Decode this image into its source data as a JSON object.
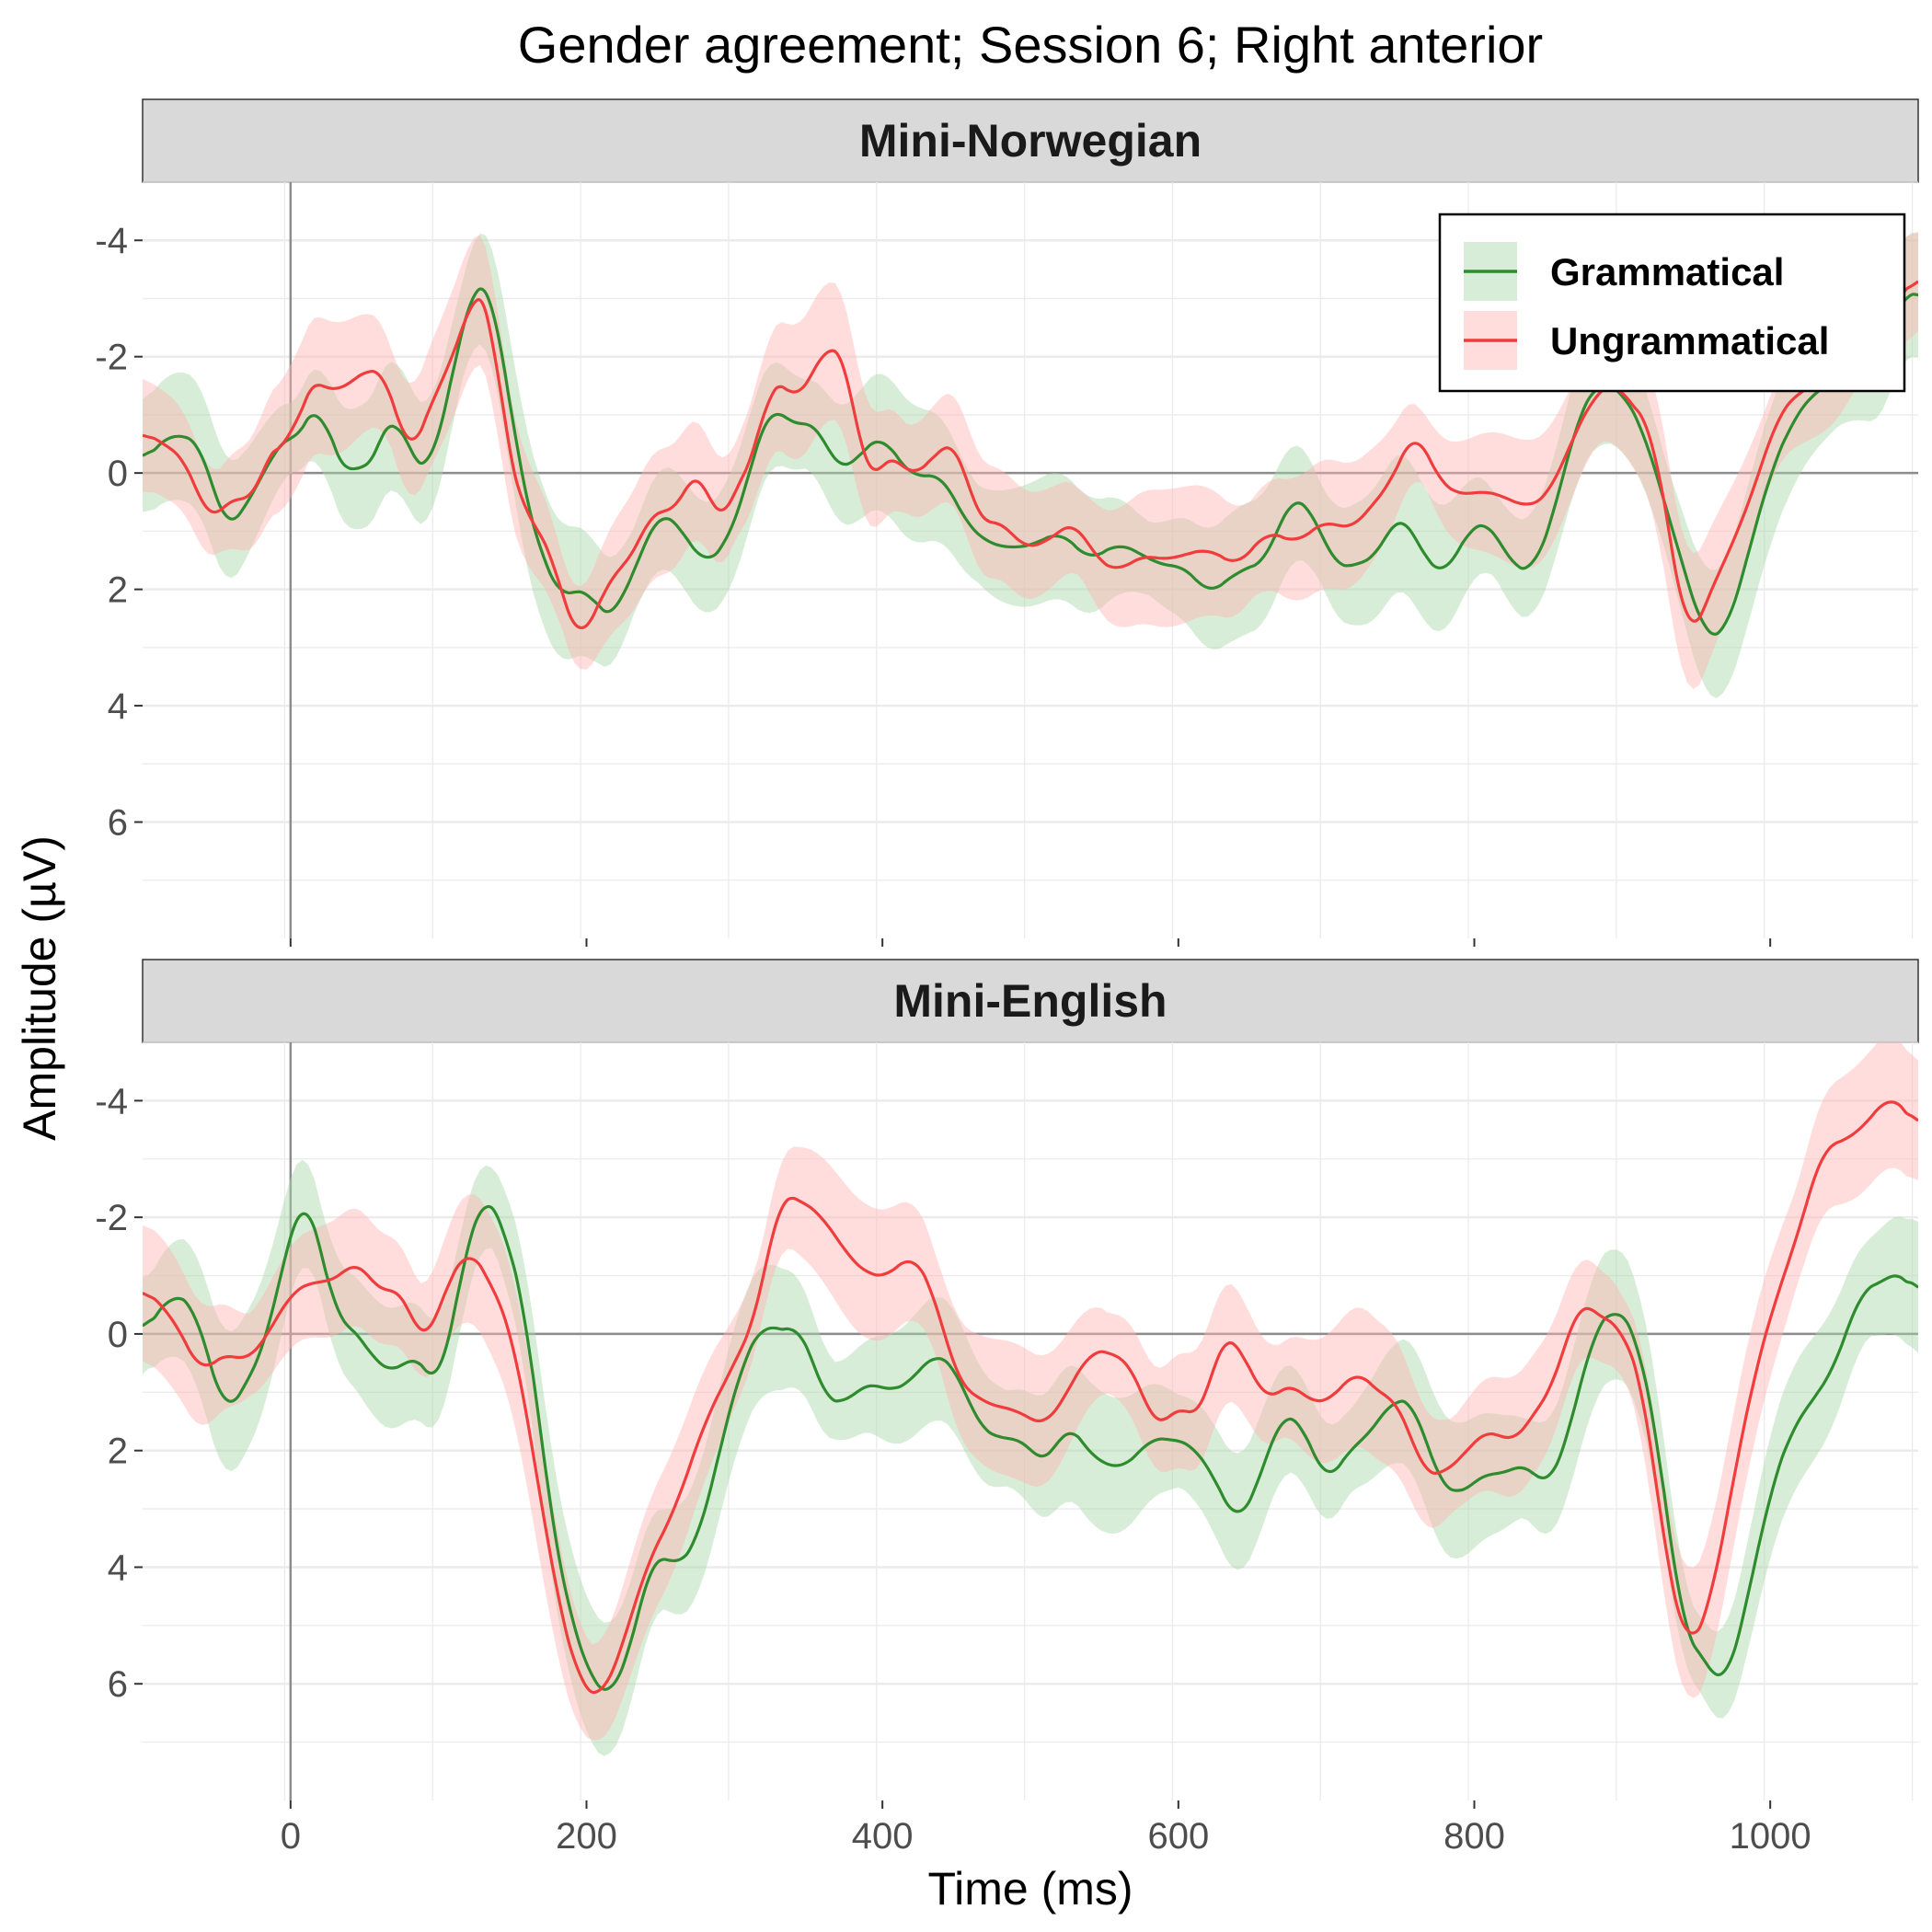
{
  "chart_data": {
    "type": "line",
    "title": "Gender agreement; Session 6; Right anterior",
    "xlabel": "Time (ms)",
    "ylabel": "Amplitude (µV)",
    "xlim": [
      -100,
      1100
    ],
    "ylim": [
      -5,
      8
    ],
    "y_reversed": true,
    "x_ticks": [
      0,
      200,
      400,
      600,
      800,
      1000
    ],
    "y_ticks": [
      -4,
      -2,
      0,
      2,
      4,
      6
    ],
    "y_tick_labels": [
      "-4",
      "-2",
      "0",
      "2",
      "4",
      "6"
    ],
    "grid": true,
    "reference_lines": {
      "x": 0,
      "y": 0
    },
    "legend": {
      "position": "top-right",
      "panel": 0,
      "entries": [
        "Grammatical",
        "Ungrammatical"
      ]
    },
    "colors": {
      "Grammatical": "#2e8b2e",
      "Ungrammatical": "#f03c3c",
      "Grammatical_band": "#a8d8a8",
      "Ungrammatical_band": "#ffb3b3"
    },
    "panels": [
      {
        "strip": "Mini-Norwegian",
        "series": [
          {
            "name": "Grammatical",
            "x": [
              -100,
              -80,
              -60,
              -45,
              -30,
              -15,
              0,
              10,
              20,
              30,
              40,
              50,
              60,
              70,
              80,
              95,
              110,
              125,
              135,
              145,
              155,
              170,
              185,
              200,
              210,
              220,
              235,
              250,
              265,
              280,
              295,
              305,
              315,
              325,
              340,
              355,
              370,
              385,
              400,
              410,
              425,
              440,
              455,
              470,
              490,
              505,
              520,
              540,
              560,
              575,
              590,
              605,
              620,
              640,
              660,
              675,
              690,
              705,
              720,
              735,
              750,
              765,
              780,
              795,
              810,
              825,
              840,
              855,
              870,
              885,
              900,
              915,
              925,
              940,
              955,
              970,
              985,
              1000,
              1015,
              1030,
              1045,
              1060,
              1075,
              1090,
              1100
            ],
            "y": [
              -0.2,
              -0.7,
              -0.5,
              1.0,
              0.6,
              -0.2,
              -0.7,
              -0.6,
              -1.5,
              0.0,
              -0.2,
              0.1,
              -0.5,
              -1.2,
              -0.3,
              0.0,
              -1.8,
              -3.4,
              -3.2,
              -1.8,
              0.0,
              1.5,
              2.2,
              1.9,
              2.5,
              2.4,
              1.5,
              0.6,
              1.0,
              1.6,
              1.2,
              0.5,
              -0.5,
              -1.2,
              -0.8,
              -0.9,
              0.0,
              -0.3,
              -0.7,
              -0.2,
              0.1,
              0.0,
              0.8,
              1.2,
              1.3,
              1.2,
              1.0,
              1.5,
              1.2,
              1.4,
              1.6,
              1.6,
              2.1,
              1.7,
              1.5,
              0.4,
              0.6,
              1.6,
              1.6,
              1.4,
              0.6,
              1.4,
              1.8,
              1.0,
              0.8,
              1.6,
              1.7,
              0.6,
              -1.0,
              -1.6,
              -1.4,
              -0.7,
              0.2,
              1.5,
              2.8,
              2.8,
              1.4,
              0.0,
              -0.9,
              -1.4,
              -1.6,
              -1.9,
              -1.8,
              -3.3,
              -2.9
            ]
          },
          {
            "name": "Ungrammatical",
            "x": [
              -100,
              -85,
              -70,
              -55,
              -40,
              -25,
              -10,
              0,
              10,
              20,
              35,
              50,
              65,
              80,
              95,
              110,
              125,
              135,
              145,
              160,
              175,
              185,
              195,
              205,
              215,
              230,
              245,
              260,
              275,
              290,
              305,
              315,
              325,
              340,
              355,
              365,
              375,
              390,
              405,
              420,
              435,
              450,
              465,
              480,
              495,
              510,
              530,
              545,
              560,
              575,
              590,
              605,
              620,
              640,
              660,
              680,
              700,
              715,
              730,
              745,
              760,
              775,
              790,
              805,
              820,
              835,
              850,
              865,
              880,
              895,
              905,
              920,
              930,
              945,
              960,
              975,
              990,
              1005,
              1020,
              1035,
              1050,
              1065,
              1080,
              1095,
              1100
            ],
            "y": [
              -0.7,
              -0.5,
              -0.2,
              0.9,
              0.4,
              0.5,
              -0.7,
              -0.3,
              -1.6,
              -1.5,
              -1.4,
              -1.8,
              -1.7,
              -0.2,
              -1.2,
              -2.0,
              -3.2,
              -3.0,
              -0.5,
              0.8,
              1.2,
              2.3,
              2.9,
              2.5,
              1.8,
              1.5,
              0.6,
              0.7,
              -0.2,
              1.0,
              0.0,
              -0.3,
              -1.8,
              -1.2,
              -1.8,
              -2.3,
              -2.0,
              0.3,
              -0.4,
              0.1,
              -0.3,
              -0.6,
              0.9,
              0.8,
              1.3,
              1.2,
              0.8,
              1.5,
              1.7,
              1.4,
              1.5,
              1.4,
              1.3,
              1.6,
              1.0,
              1.2,
              0.8,
              1.0,
              0.6,
              0.1,
              -0.8,
              0.1,
              0.4,
              0.3,
              0.4,
              0.6,
              0.4,
              -0.5,
              -1.3,
              -1.6,
              -1.2,
              -0.8,
              0.8,
              3.0,
              2.0,
              1.2,
              0.2,
              -1.0,
              -1.4,
              -1.6,
              -2.0,
              -2.8,
              -2.8,
              -3.2,
              -3.5
            ]
          }
        ]
      },
      {
        "strip": "Mini-English",
        "series": [
          {
            "name": "Grammatical",
            "x": [
              -100,
              -80,
              -65,
              -45,
              -30,
              -15,
              0,
              10,
              20,
              30,
              40,
              55,
              70,
              85,
              100,
              115,
              130,
              145,
              160,
              175,
              190,
              205,
              215,
              230,
              245,
              260,
              275,
              290,
              305,
              320,
              335,
              345,
              360,
              375,
              390,
              405,
              420,
              435,
              450,
              465,
              480,
              495,
              510,
              525,
              545,
              565,
              580,
              595,
              610,
              625,
              640,
              655,
              670,
              685,
              700,
              715,
              730,
              745,
              760,
              775,
              790,
              805,
              820,
              835,
              850,
              865,
              880,
              895,
              910,
              925,
              940,
              955,
              970,
              985,
              1000,
              1015,
              1030,
              1045,
              1060,
              1075,
              1090,
              1100
            ],
            "y": [
              0.0,
              -0.7,
              -0.5,
              1.4,
              0.9,
              0.0,
              -1.8,
              -2.4,
              -1.6,
              -0.2,
              -0.2,
              0.4,
              0.7,
              0.3,
              1.0,
              -1.0,
              -2.5,
              -1.8,
              -0.2,
              3.0,
              5.0,
              6.0,
              6.3,
              5.4,
              3.7,
              4.0,
              3.6,
              2.0,
              0.5,
              -0.2,
              0.0,
              -0.2,
              1.1,
              1.2,
              0.8,
              1.0,
              0.8,
              0.3,
              0.6,
              1.6,
              1.8,
              1.8,
              2.3,
              1.5,
              2.2,
              2.3,
              1.8,
              1.8,
              1.9,
              2.5,
              3.3,
              2.5,
              1.3,
              1.6,
              2.6,
              2.0,
              1.7,
              1.1,
              1.2,
              2.5,
              2.8,
              2.4,
              2.4,
              2.2,
              2.7,
              1.6,
              0.0,
              -0.5,
              0.0,
              2.0,
              5.0,
              5.6,
              6.1,
              4.5,
              2.7,
              1.6,
              1.1,
              0.5,
              -0.7,
              -0.9,
              -1.1,
              -0.6
            ]
          },
          {
            "name": "Ungrammatical",
            "x": [
              -100,
              -80,
              -60,
              -45,
              -30,
              -15,
              0,
              15,
              30,
              45,
              60,
              75,
              90,
              105,
              120,
              135,
              150,
              165,
              180,
              195,
              210,
              225,
              240,
              260,
              280,
              300,
              315,
              330,
              345,
              360,
              375,
              390,
              405,
              420,
              435,
              450,
              470,
              490,
              510,
              525,
              540,
              555,
              570,
              585,
              600,
              615,
              630,
              645,
              660,
              675,
              690,
              705,
              720,
              735,
              750,
              765,
              780,
              795,
              810,
              825,
              840,
              855,
              870,
              885,
              900,
              915,
              930,
              945,
              960,
              975,
              990,
              1005,
              1020,
              1035,
              1050,
              1065,
              1080,
              1090,
              1100
            ],
            "y": [
              -0.8,
              -0.3,
              0.7,
              0.3,
              0.5,
              0.0,
              -0.7,
              -0.9,
              -0.9,
              -1.3,
              -0.7,
              -0.8,
              0.3,
              -0.8,
              -1.5,
              -0.9,
              0.0,
              2.2,
              4.5,
              6.0,
              6.3,
              5.3,
              4.0,
              3.0,
              1.5,
              0.5,
              -0.3,
              -2.4,
              -2.3,
              -2.0,
              -1.4,
              -1.0,
              -1.0,
              -1.4,
              -0.7,
              0.8,
              1.2,
              1.3,
              1.6,
              1.0,
              0.3,
              0.3,
              0.6,
              1.7,
              1.2,
              1.5,
              -0.1,
              0.4,
              1.2,
              0.8,
              1.2,
              1.1,
              0.6,
              1.0,
              1.2,
              2.4,
              2.4,
              2.0,
              1.6,
              1.9,
              1.4,
              0.8,
              -0.6,
              -0.3,
              -0.1,
              1.0,
              4.0,
              5.5,
              4.6,
              2.5,
              0.6,
              -0.7,
              -1.8,
              -3.2,
              -3.3,
              -3.6,
              -4.1,
              -3.9,
              -3.5
            ]
          }
        ]
      }
    ]
  }
}
